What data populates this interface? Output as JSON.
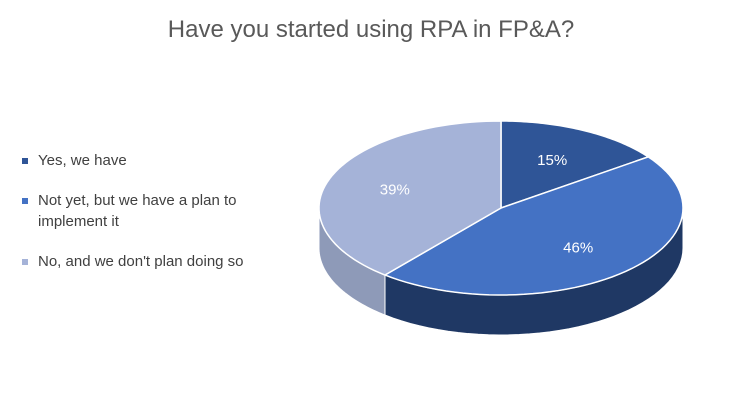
{
  "chart_data": {
    "type": "pie",
    "title": "Have you started using RPA in FP&A?",
    "categories": [
      "Yes, we have",
      "Not yet, but we have a plan to implement it",
      "No, and we don't plan doing so"
    ],
    "values": [
      15,
      46,
      39
    ],
    "labels": [
      "15%",
      "46%",
      "39%"
    ],
    "colors": [
      "#2f5597",
      "#4472c4",
      "#a5b3d8"
    ],
    "side_colors": [
      "#1f3864",
      "#1f3864",
      "#8e9ab8"
    ],
    "legend_position": "left",
    "style": "3d"
  }
}
